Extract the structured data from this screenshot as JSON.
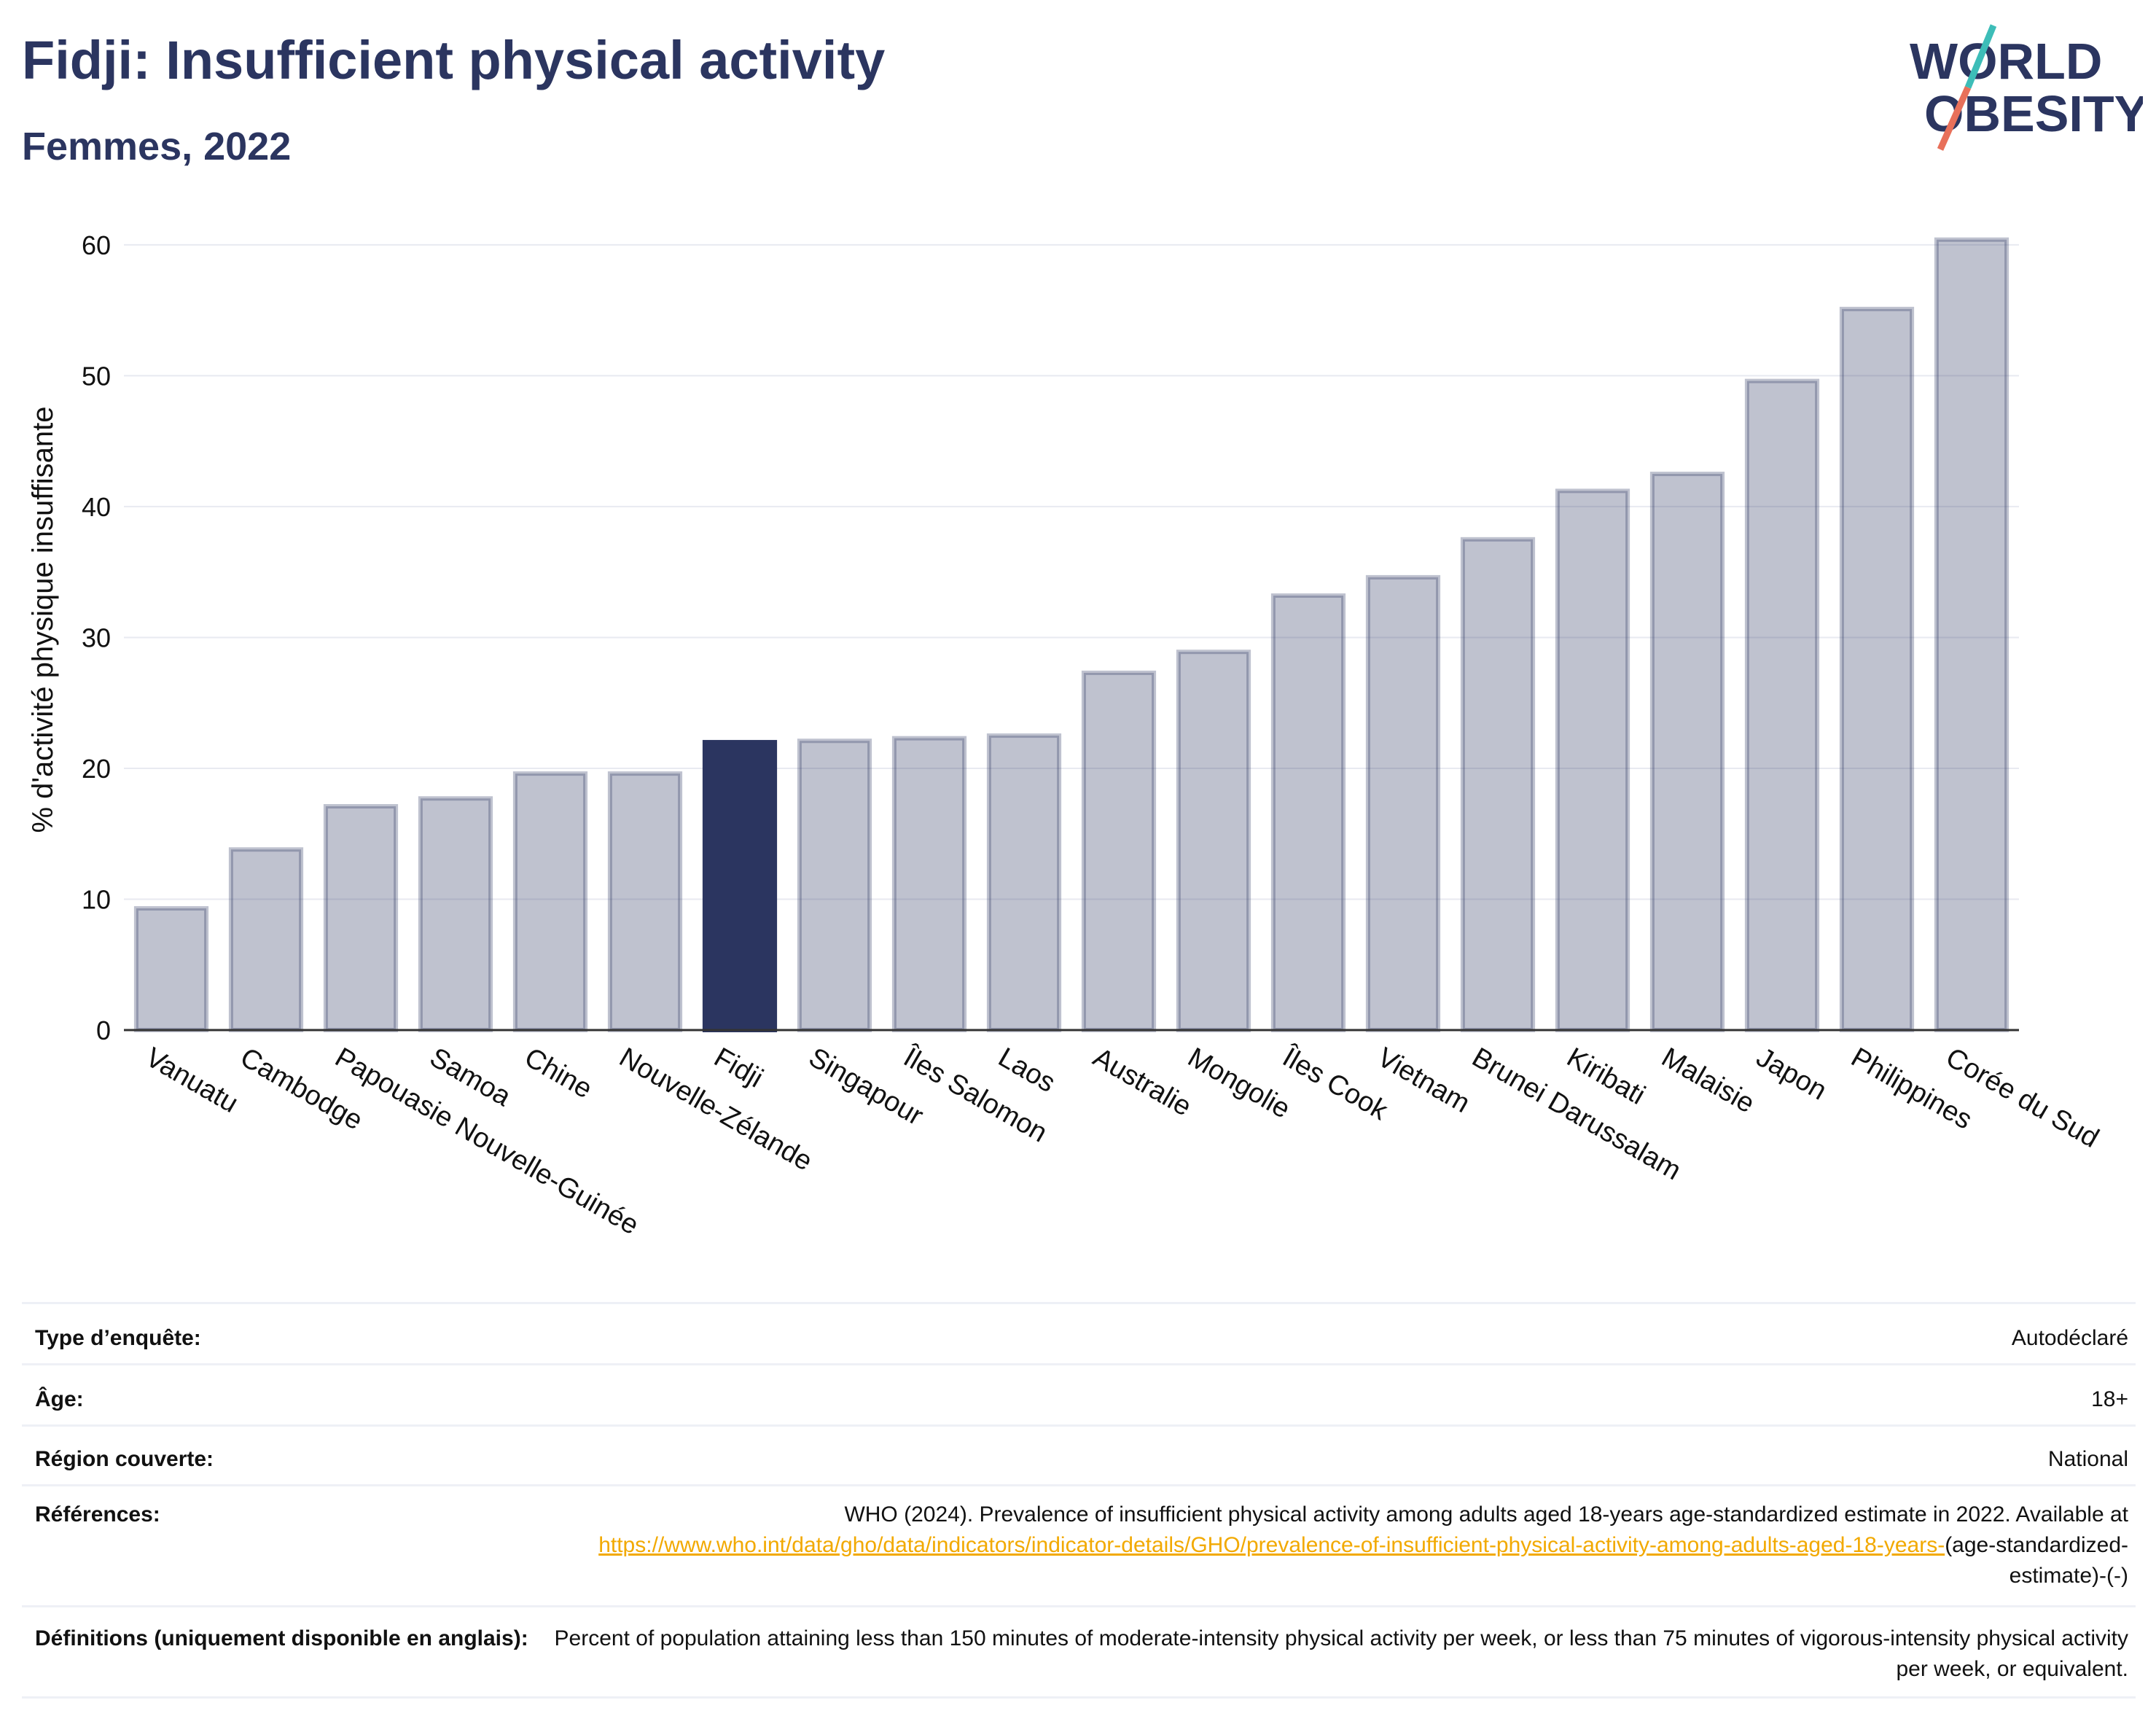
{
  "header": {
    "title": "Fidji: Insufficient physical activity",
    "subtitle": "Femmes, 2022"
  },
  "logo": {
    "line1": "WORLD",
    "line2": "OBESITY",
    "accent_teal": "#3dbdb8",
    "accent_coral": "#e8705a"
  },
  "colors": {
    "bar_default": "#2b3560",
    "bar_highlight": "#2b3560",
    "axis_text": "#111111",
    "gridline": "#e8eaf1"
  },
  "chart_data": {
    "type": "bar",
    "ylabel": "% d'activité physique insuffisante",
    "ylim": [
      0,
      62
    ],
    "yticks": [
      0,
      10,
      20,
      30,
      40,
      50,
      60
    ],
    "grid": true,
    "highlight": "Fidji",
    "categories": [
      "Vanuatu",
      "Cambodge",
      "Papouasie Nouvelle-Guinée",
      "Samoa",
      "Chine",
      "Nouvelle-Zélande",
      "Fidji",
      "Singapour",
      "Îles Salomon",
      "Laos",
      "Australie",
      "Mongolie",
      "Îles Cook",
      "Vietnam",
      "Brunei Darussalam",
      "Kiribati",
      "Malaisie",
      "Japon",
      "Philippines",
      "Corée du Sud"
    ],
    "values": [
      9.3,
      13.8,
      17.1,
      17.7,
      19.6,
      19.6,
      22.0,
      22.1,
      22.3,
      22.5,
      27.3,
      28.9,
      33.2,
      34.6,
      37.5,
      41.2,
      42.5,
      49.6,
      55.1,
      60.4
    ]
  },
  "meta": {
    "survey_type": {
      "label": "Type d’enquête:",
      "value": "Autodéclaré"
    },
    "age": {
      "label": "Âge:",
      "value": "18+"
    },
    "region": {
      "label": "Région couverte:",
      "value": "National"
    },
    "references": {
      "label": "Références:",
      "text": "WHO (2024). Prevalence of insufficient physical activity among adults aged 18-years age-standardized estimate in 2022. Available at",
      "link": "https://www.who.int/data/gho/data/indicators/indicator-details/GHO/prevalence-of-insufficient-physical-activity-among-adults-aged-18-years-",
      "suffix": "(age-standardized-estimate)-(-)"
    },
    "definitions": {
      "label": "Définitions (uniquement disponible en anglais):",
      "value": "Percent of population attaining less than 150 minutes of moderate-intensity physical activity per week, or less than 75 minutes of vigorous-intensity physical activity per week, or equivalent."
    }
  }
}
